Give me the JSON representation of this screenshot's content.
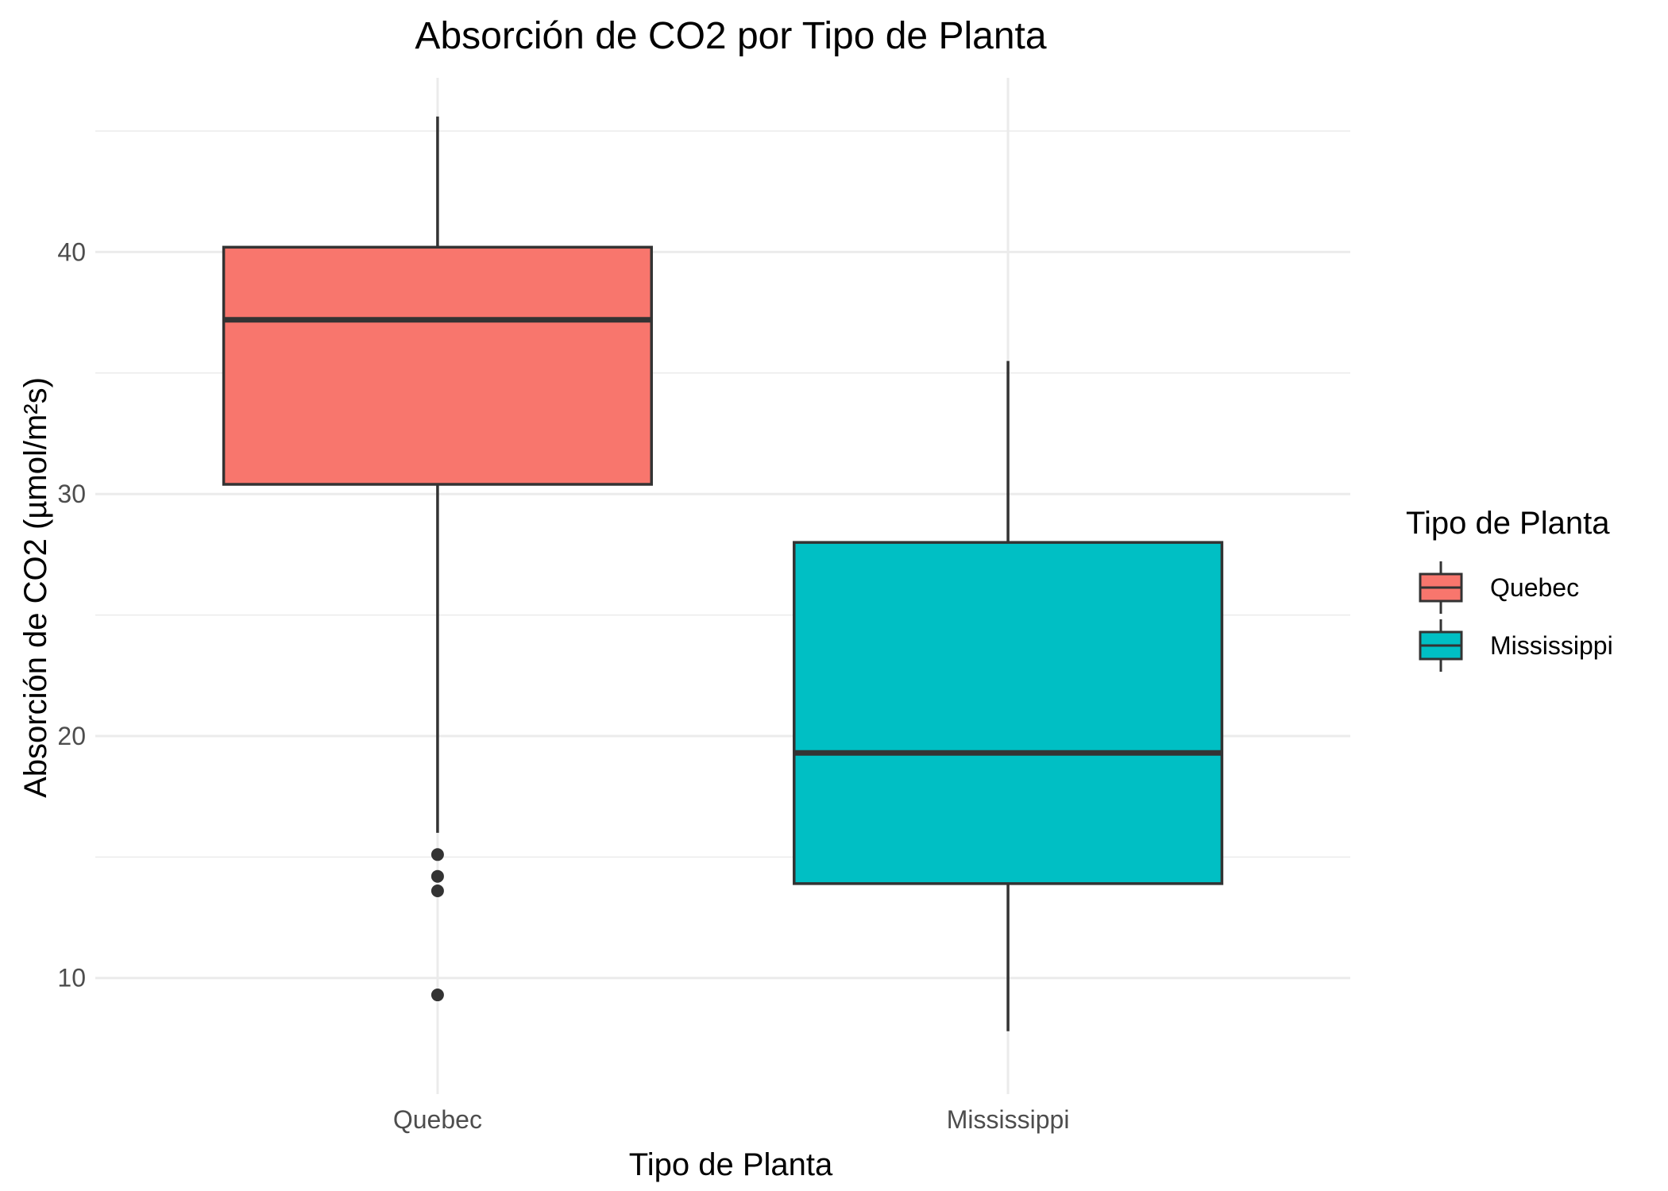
{
  "chart_data": {
    "type": "boxplot",
    "title": "Absorción de CO2 por Tipo de Planta",
    "xlabel": "Tipo de Planta",
    "ylabel": "Absorción de CO2 (µmol/m²s)",
    "categories": [
      "Quebec",
      "Mississippi"
    ],
    "ylim": [
      5.2,
      47.2
    ],
    "yticks": [
      10,
      20,
      30,
      40
    ],
    "grid": true,
    "legend": {
      "title": "Tipo de Planta",
      "position": "right",
      "entries": [
        {
          "label": "Quebec",
          "color": "#F8766D"
        },
        {
          "label": "Mississippi",
          "color": "#00BFC4"
        }
      ]
    },
    "series": [
      {
        "name": "Quebec",
        "color": "#F8766D",
        "whisker_low": 16.0,
        "q1": 30.4,
        "median": 37.2,
        "q3": 40.2,
        "whisker_high": 45.6,
        "outliers": [
          15.1,
          14.2,
          13.6,
          9.3
        ]
      },
      {
        "name": "Mississippi",
        "color": "#00BFC4",
        "whisker_low": 7.8,
        "q1": 13.9,
        "median": 19.3,
        "q3": 28.0,
        "whisker_high": 35.5,
        "outliers": []
      }
    ]
  }
}
